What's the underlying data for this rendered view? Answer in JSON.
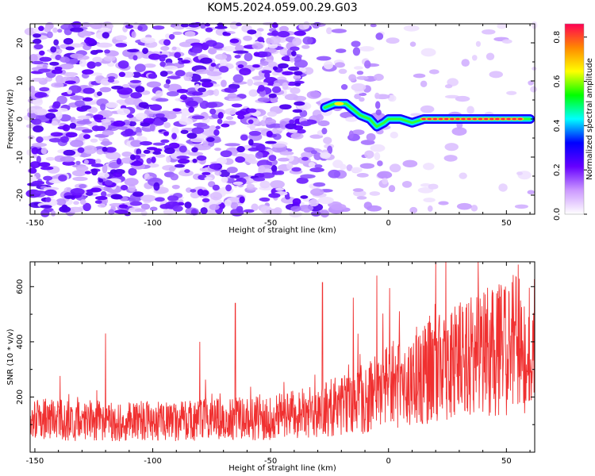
{
  "figure": {
    "title": "KOM5.2024.059.00.29.G03"
  },
  "chart_data": [
    {
      "type": "heatmap",
      "xlabel": "Height of straight line (km)",
      "ylabel": "Frequency (Hz)",
      "xlim": [
        -152,
        62
      ],
      "ylim": [
        -25,
        25
      ],
      "xticks": [
        -150,
        -100,
        -50,
        0,
        50
      ],
      "yticks": [
        -20,
        -10,
        0,
        10,
        20
      ],
      "colorbar": {
        "label": "Normalized spectral amplitude",
        "range": [
          0.0,
          0.86
        ],
        "ticks": [
          0.0,
          0.2,
          0.4,
          0.6,
          0.8
        ],
        "colormap": [
          "#ffffff",
          "#cc99ff",
          "#6600ff",
          "#0000ff",
          "#00ffff",
          "#00ff00",
          "#ffff00",
          "#ff8800",
          "#ff0055"
        ]
      },
      "ridge": {
        "points": [
          {
            "x": -27,
            "y": 3
          },
          {
            "x": -23,
            "y": 4
          },
          {
            "x": -18,
            "y": 4
          },
          {
            "x": -12,
            "y": 1
          },
          {
            "x": -8,
            "y": 0
          },
          {
            "x": -5,
            "y": -2
          },
          {
            "x": -2,
            "y": -1
          },
          {
            "x": 0,
            "y": 0
          },
          {
            "x": 5,
            "y": 0
          },
          {
            "x": 10,
            "y": -1
          },
          {
            "x": 15,
            "y": 0
          },
          {
            "x": 20,
            "y": 0
          },
          {
            "x": 30,
            "y": 0
          },
          {
            "x": 40,
            "y": 0
          },
          {
            "x": 50,
            "y": 0
          },
          {
            "x": 60,
            "y": 0
          }
        ],
        "peak_x_range": [
          15,
          58
        ],
        "peak_frequency": 0
      }
    },
    {
      "type": "line",
      "xlabel": "Height of straight line (km)",
      "ylabel": "SNR (10 * v/v)",
      "xlim": [
        -152,
        62
      ],
      "ylim": [
        0,
        690
      ],
      "xticks": [
        -150,
        -100,
        -50,
        0,
        50
      ],
      "yticks": [
        200,
        400,
        600
      ],
      "series": [
        {
          "color": "#f03030",
          "trend": [
            {
              "x": -152,
              "y": 120
            },
            {
              "x": -100,
              "y": 110
            },
            {
              "x": -50,
              "y": 125
            },
            {
              "x": -30,
              "y": 150
            },
            {
              "x": -10,
              "y": 190
            },
            {
              "x": 0,
              "y": 240
            },
            {
              "x": 20,
              "y": 300
            },
            {
              "x": 40,
              "y": 360
            },
            {
              "x": 62,
              "y": 400
            }
          ],
          "spikes": [
            {
              "x": -120,
              "y": 430
            },
            {
              "x": -80,
              "y": 400
            },
            {
              "x": -65,
              "y": 540
            },
            {
              "x": -28,
              "y": 615
            },
            {
              "x": -15,
              "y": 560
            },
            {
              "x": -5,
              "y": 640
            },
            {
              "x": 20,
              "y": 690
            },
            {
              "x": 38,
              "y": 690
            },
            {
              "x": 55,
              "y": 680
            }
          ]
        }
      ]
    }
  ]
}
